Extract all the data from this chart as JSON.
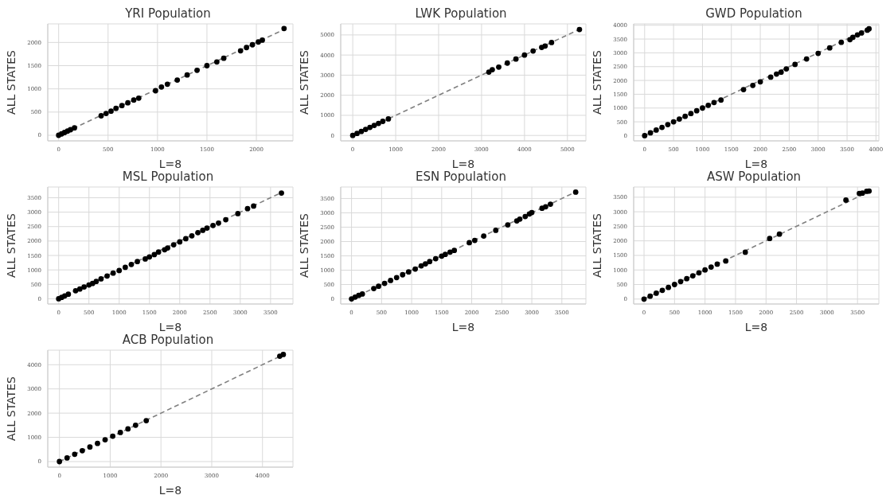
{
  "chart_data": [
    {
      "type": "scatter",
      "title": "YRI Population",
      "xlabel": "L=8",
      "ylabel": "ALL STATES",
      "xlim": [
        -110,
        2370
      ],
      "ylim": [
        -120,
        2400
      ],
      "xticks": [
        0,
        500,
        1000,
        1500,
        2000
      ],
      "yticks": [
        0,
        500,
        1000,
        1500,
        2000
      ],
      "grid": true,
      "marker": "circle",
      "series": [
        {
          "type": "line",
          "color": "#808080",
          "line_style": "dashed",
          "marker": "none",
          "x": [
            0,
            2290
          ],
          "values": [
            0,
            2290
          ]
        },
        {
          "type": "scatter",
          "color": "#000000",
          "x": [
            0,
            30,
            60,
            90,
            120,
            160,
            430,
            480,
            530,
            580,
            640,
            700,
            760,
            810,
            980,
            1040,
            1100,
            1200,
            1300,
            1400,
            1500,
            1600,
            1670,
            1840,
            1900,
            1960,
            2020,
            2060,
            2280
          ],
          "values": [
            0,
            30,
            60,
            90,
            120,
            160,
            420,
            470,
            520,
            580,
            640,
            700,
            760,
            800,
            960,
            1040,
            1100,
            1190,
            1300,
            1400,
            1500,
            1580,
            1660,
            1820,
            1890,
            1950,
            2010,
            2050,
            2300
          ]
        }
      ]
    },
    {
      "type": "scatter",
      "title": "LWK Population",
      "xlabel": "L=8",
      "ylabel": "ALL STATES",
      "xlim": [
        -280,
        5430
      ],
      "ylim": [
        -270,
        5550
      ],
      "xticks": [
        0,
        1000,
        2000,
        3000,
        4000,
        5000
      ],
      "yticks": [
        0,
        1000,
        2000,
        3000,
        4000,
        5000
      ],
      "grid": true,
      "marker": "circle",
      "series": [
        {
          "type": "line",
          "color": "#808080",
          "line_style": "dashed",
          "marker": "none",
          "x": [
            0,
            5280
          ],
          "values": [
            0,
            5280
          ]
        },
        {
          "type": "scatter",
          "color": "#000000",
          "x": [
            0,
            100,
            200,
            300,
            400,
            500,
            600,
            700,
            830,
            3170,
            3250,
            3400,
            3600,
            3800,
            4000,
            4200,
            4400,
            4480,
            4630,
            5280
          ],
          "values": [
            0,
            100,
            200,
            300,
            400,
            500,
            600,
            700,
            820,
            3150,
            3270,
            3400,
            3600,
            3800,
            4000,
            4200,
            4380,
            4450,
            4620,
            5270
          ]
        }
      ]
    },
    {
      "type": "scatter",
      "title": "GWD Population",
      "xlabel": "L=8",
      "ylabel": "ALL STATES",
      "xlim": [
        -190,
        4050
      ],
      "ylim": [
        -190,
        4050
      ],
      "xticks": [
        0,
        500,
        1000,
        1500,
        2000,
        2500,
        3000,
        3500,
        4000
      ],
      "yticks": [
        0,
        500,
        1000,
        1500,
        2000,
        2500,
        3000,
        3500,
        4000
      ],
      "grid": true,
      "marker": "circle",
      "series": [
        {
          "type": "line",
          "color": "#808080",
          "line_style": "dashed",
          "marker": "none",
          "x": [
            0,
            3880
          ],
          "values": [
            0,
            3880
          ]
        },
        {
          "type": "scatter",
          "color": "#000000",
          "x": [
            0,
            100,
            200,
            300,
            400,
            500,
            600,
            700,
            800,
            900,
            1000,
            1100,
            1200,
            1320,
            1710,
            1870,
            2000,
            2180,
            2280,
            2360,
            2450,
            2600,
            2800,
            3000,
            3200,
            3400,
            3550,
            3600,
            3680,
            3750,
            3850,
            3880
          ],
          "values": [
            0,
            100,
            200,
            300,
            400,
            500,
            600,
            700,
            800,
            900,
            1000,
            1100,
            1200,
            1290,
            1670,
            1820,
            1950,
            2120,
            2230,
            2300,
            2420,
            2580,
            2780,
            2980,
            3180,
            3380,
            3480,
            3560,
            3650,
            3720,
            3820,
            3870
          ]
        }
      ]
    },
    {
      "type": "scatter",
      "title": "MSL Population",
      "xlabel": "L=8",
      "ylabel": "ALL STATES",
      "xlim": [
        -180,
        3870
      ],
      "ylim": [
        -180,
        3870
      ],
      "xticks": [
        0,
        500,
        1000,
        1500,
        2000,
        2500,
        3000,
        3500
      ],
      "yticks": [
        0,
        500,
        1000,
        1500,
        2000,
        2500,
        3000,
        3500
      ],
      "grid": true,
      "marker": "circle",
      "series": [
        {
          "type": "line",
          "color": "#808080",
          "line_style": "dashed",
          "marker": "none",
          "x": [
            0,
            3680
          ],
          "values": [
            0,
            3680
          ]
        },
        {
          "type": "scatter",
          "color": "#000000",
          "x": [
            0,
            50,
            100,
            160,
            280,
            350,
            420,
            500,
            560,
            620,
            700,
            800,
            900,
            1000,
            1100,
            1200,
            1300,
            1430,
            1500,
            1580,
            1650,
            1750,
            1800,
            1900,
            2000,
            2100,
            2200,
            2300,
            2380,
            2450,
            2550,
            2640,
            2760,
            2960,
            3120,
            3220,
            3680
          ],
          "values": [
            0,
            50,
            100,
            160,
            280,
            340,
            410,
            480,
            530,
            600,
            690,
            790,
            890,
            980,
            1090,
            1190,
            1290,
            1380,
            1450,
            1530,
            1620,
            1700,
            1760,
            1870,
            1970,
            2080,
            2180,
            2290,
            2370,
            2450,
            2540,
            2620,
            2740,
            2950,
            3120,
            3210,
            3660
          ]
        }
      ]
    },
    {
      "type": "scatter",
      "title": "ESN Population",
      "xlabel": "L=8",
      "ylabel": "ALL STATES",
      "xlim": [
        -180,
        3900
      ],
      "ylim": [
        -180,
        3900
      ],
      "xticks": [
        0,
        500,
        1000,
        1500,
        2000,
        2500,
        3000,
        3500
      ],
      "yticks": [
        0,
        500,
        1000,
        1500,
        2000,
        2500,
        3000,
        3500
      ],
      "grid": true,
      "marker": "circle",
      "series": [
        {
          "type": "line",
          "color": "#808080",
          "line_style": "dashed",
          "marker": "none",
          "x": [
            0,
            3730
          ],
          "values": [
            0,
            3730
          ]
        },
        {
          "type": "scatter",
          "color": "#000000",
          "x": [
            0,
            60,
            120,
            180,
            370,
            450,
            550,
            650,
            750,
            850,
            950,
            1060,
            1160,
            1230,
            1300,
            1400,
            1500,
            1560,
            1640,
            1710,
            1960,
            2050,
            2200,
            2400,
            2600,
            2750,
            2800,
            2890,
            2960,
            3000,
            3170,
            3230,
            3310,
            3730
          ],
          "values": [
            0,
            60,
            120,
            170,
            360,
            440,
            540,
            640,
            740,
            840,
            940,
            1040,
            1150,
            1220,
            1300,
            1400,
            1490,
            1550,
            1630,
            1690,
            1960,
            2040,
            2190,
            2390,
            2580,
            2720,
            2780,
            2870,
            2960,
            3010,
            3160,
            3210,
            3300,
            3720
          ]
        }
      ]
    },
    {
      "type": "scatter",
      "title": "ASW Population",
      "xlabel": "L=8",
      "ylabel": "ALL STATES",
      "xlim": [
        -170,
        3850
      ],
      "ylim": [
        -170,
        3850
      ],
      "xticks": [
        0,
        500,
        1000,
        1500,
        2000,
        2500,
        3000,
        3500
      ],
      "yticks": [
        0,
        500,
        1000,
        1500,
        2000,
        2500,
        3000,
        3500
      ],
      "grid": true,
      "marker": "circle",
      "series": [
        {
          "type": "line",
          "color": "#808080",
          "line_style": "dashed",
          "marker": "none",
          "x": [
            0,
            3690
          ],
          "values": [
            0,
            3690
          ]
        },
        {
          "type": "scatter",
          "color": "#000000",
          "x": [
            0,
            100,
            200,
            300,
            400,
            500,
            600,
            700,
            800,
            900,
            1000,
            1100,
            1200,
            1340,
            1660,
            2060,
            2220,
            3310,
            3530,
            3580,
            3650,
            3690
          ],
          "values": [
            0,
            100,
            200,
            300,
            400,
            500,
            600,
            700,
            800,
            900,
            1000,
            1100,
            1200,
            1310,
            1610,
            2080,
            2230,
            3400,
            3630,
            3640,
            3700,
            3710
          ]
        }
      ]
    },
    {
      "type": "scatter",
      "title": "ACB Population",
      "xlabel": "L=8",
      "ylabel": "ALL STATES",
      "xlim": [
        -230,
        4600
      ],
      "ylim": [
        -230,
        4600
      ],
      "xticks": [
        0,
        1000,
        2000,
        3000,
        4000
      ],
      "yticks": [
        0,
        1000,
        2000,
        3000,
        4000
      ],
      "grid": true,
      "marker": "circle",
      "series": [
        {
          "type": "line",
          "color": "#808080",
          "line_style": "dashed",
          "marker": "none",
          "x": [
            0,
            4410
          ],
          "values": [
            0,
            4410
          ]
        },
        {
          "type": "scatter",
          "color": "#000000",
          "x": [
            0,
            150,
            300,
            450,
            600,
            750,
            900,
            1050,
            1200,
            1350,
            1500,
            1710,
            4340,
            4410
          ],
          "values": [
            0,
            150,
            300,
            450,
            600,
            750,
            900,
            1050,
            1200,
            1350,
            1500,
            1690,
            4350,
            4420
          ]
        }
      ]
    }
  ]
}
